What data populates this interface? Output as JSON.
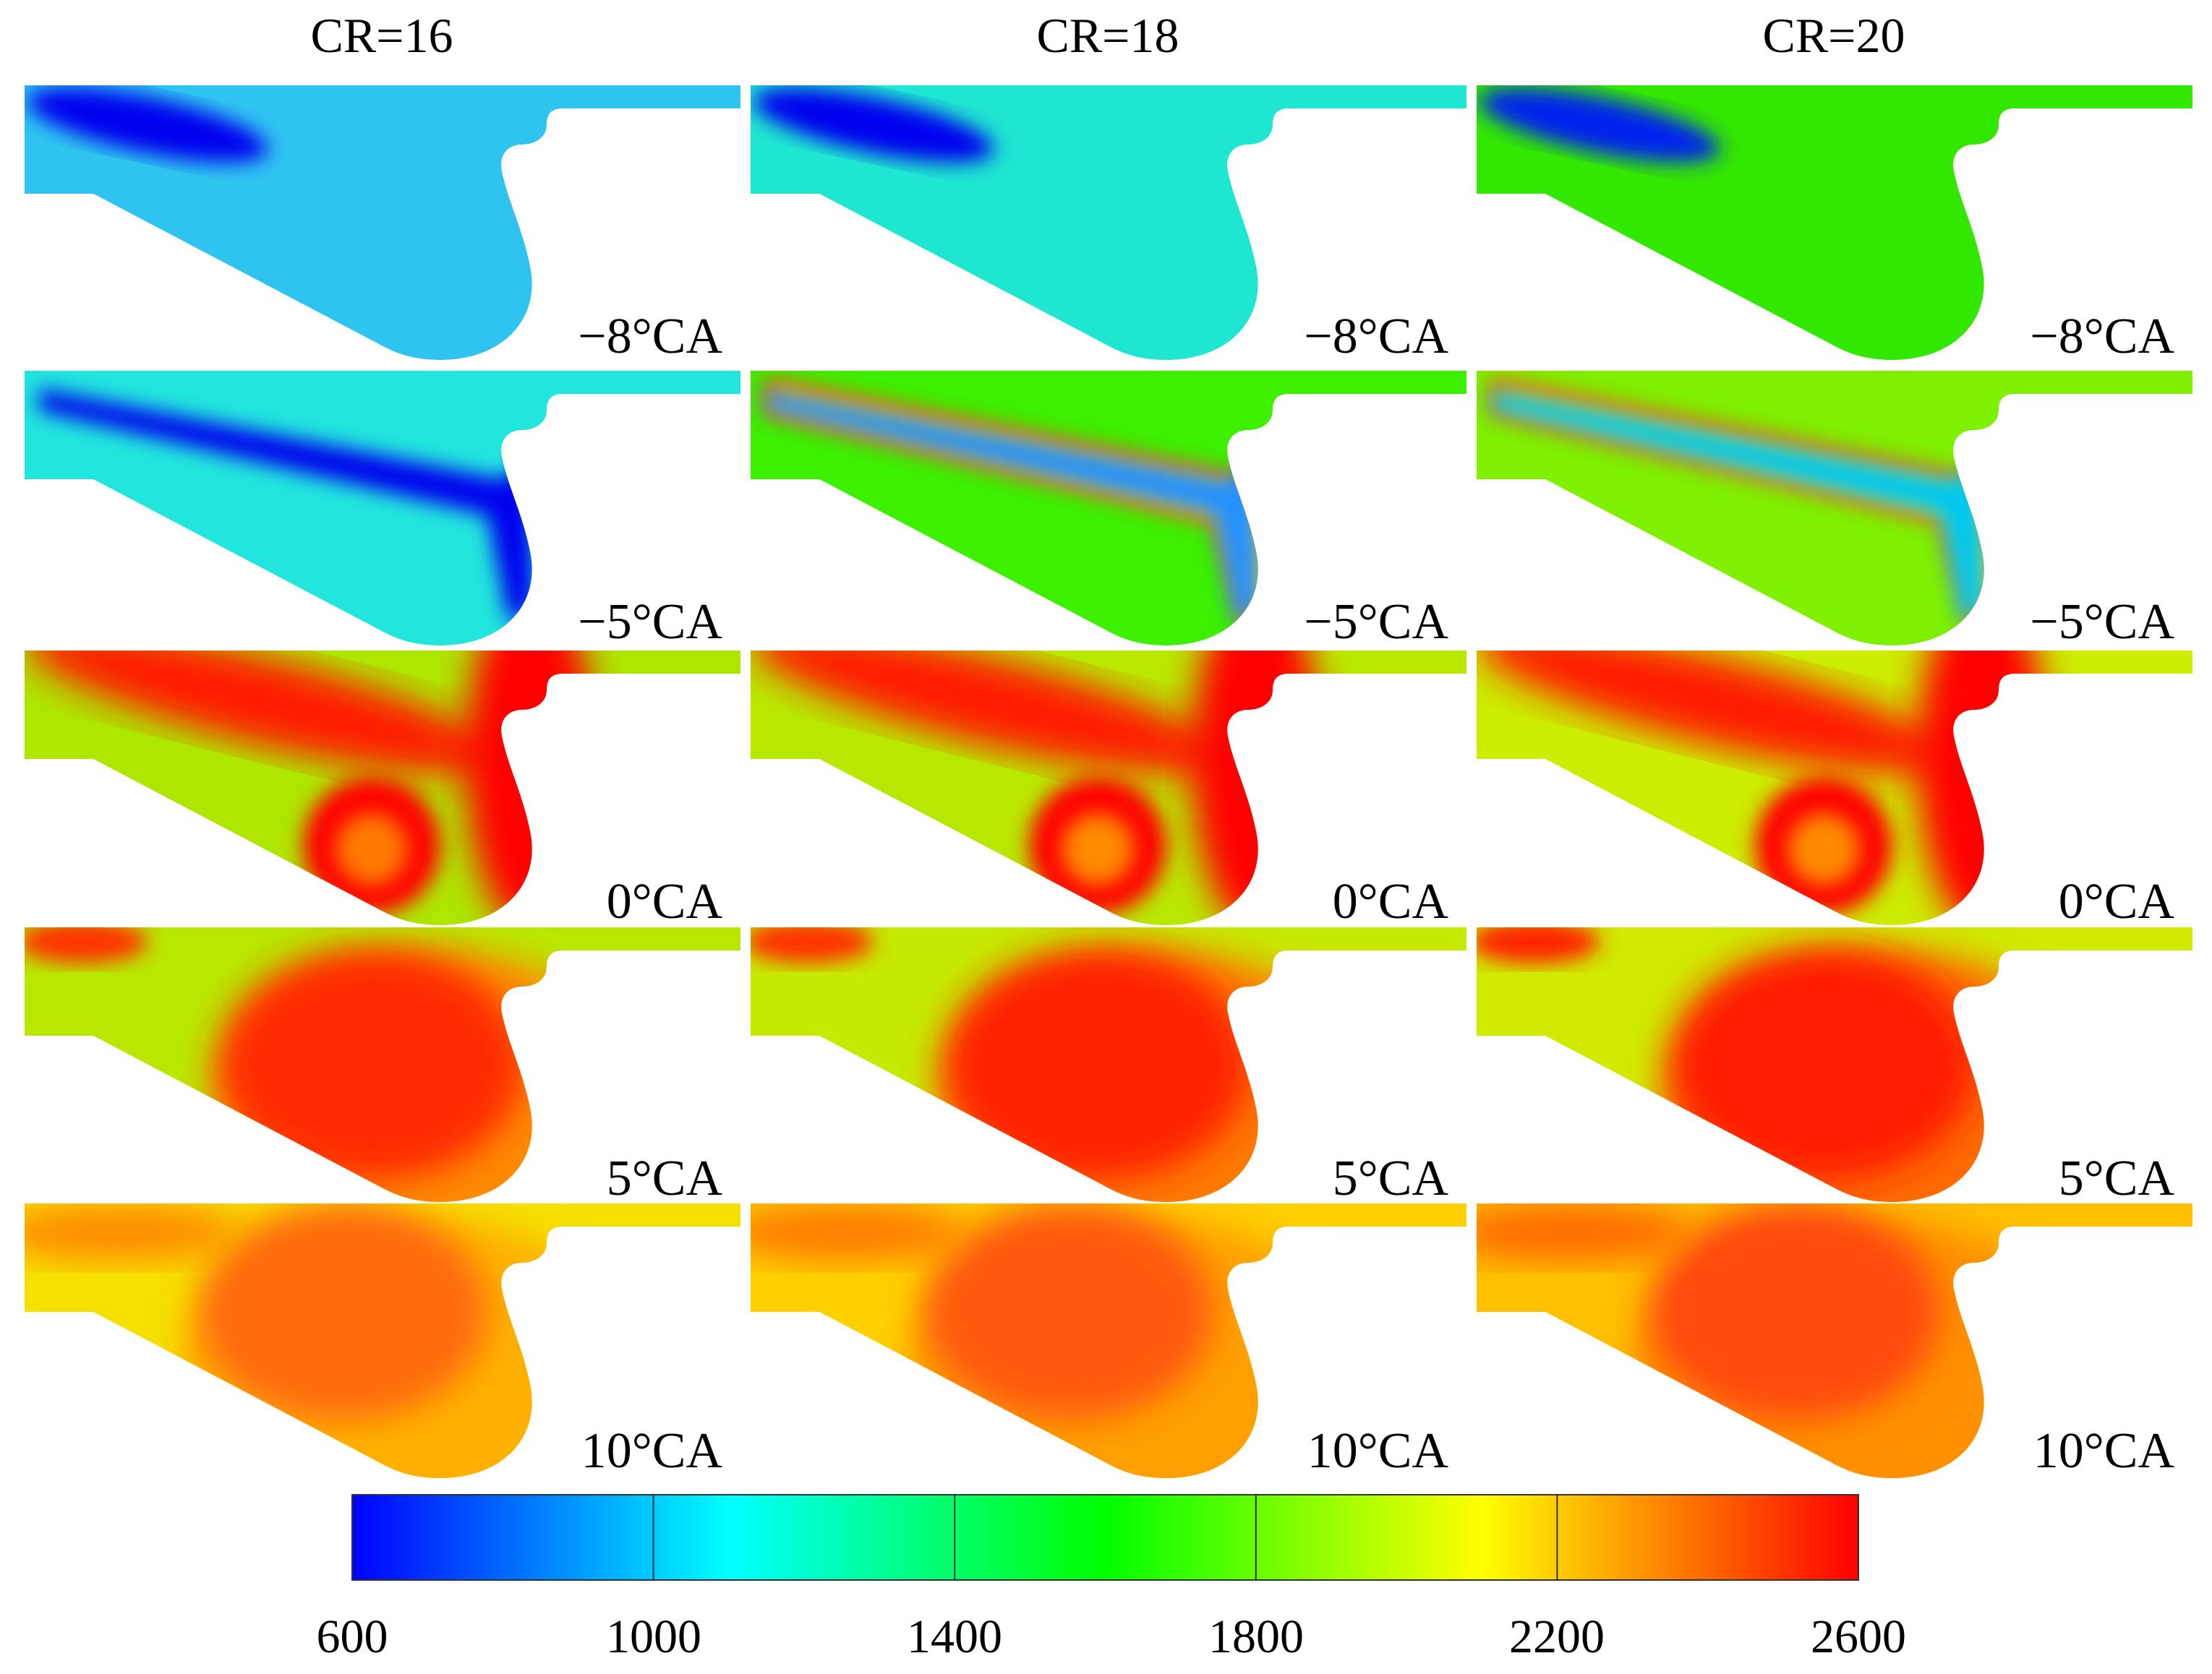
{
  "columns": [
    "CR=16",
    "CR=18",
    "CR=20"
  ],
  "rows": [
    "−8°CA",
    "−5°CA",
    "0°CA",
    "5°CA",
    "10°CA"
  ],
  "colorbar": {
    "min": 600,
    "max": 2600,
    "ticks": [
      "600",
      "1000",
      "1400",
      "1800",
      "2200",
      "2600"
    ],
    "colors": [
      "#0000ff",
      "#00ffff",
      "#00ff00",
      "#ffff00",
      "#ff0000"
    ]
  },
  "panels": [
    [
      {
        "bg": "#2fc4f0",
        "core": "#0000ee",
        "mid": null,
        "hot": null
      },
      {
        "bg": "#22e6de",
        "core": "#0000ee",
        "mid": null,
        "hot": null
      },
      {
        "bg": "#aee600",
        "core": "#ff1a00",
        "mid": "#ff7a00",
        "hot": "#ff0000"
      },
      {
        "bg": "#b9e800",
        "core": "#ff2a00",
        "mid": "#ff8a00",
        "hot": "#ff3300"
      },
      {
        "bg": "#f6e000",
        "core": "#ff6a10",
        "mid": "#ffb000",
        "hot": "#ff8a00"
      }
    ],
    [
      {
        "bg": "#1fe6d0",
        "core": "#0000ee",
        "mid": null,
        "hot": null
      },
      {
        "bg": "#3cf000",
        "core": "#2090ff",
        "mid": "#ffe000",
        "hot": "#ff3a00"
      },
      {
        "bg": "#b9e800",
        "core": "#ff1a00",
        "mid": "#ff8a00",
        "hot": "#ff0000"
      },
      {
        "bg": "#c6ea00",
        "core": "#ff2000",
        "mid": "#ff7a00",
        "hot": "#ff3300"
      },
      {
        "bg": "#ffd000",
        "core": "#ff5a10",
        "mid": "#ffa000",
        "hot": "#ff7a00"
      }
    ],
    [
      {
        "bg": "#33e800",
        "core": "#0022ee",
        "mid": null,
        "hot": null
      },
      {
        "bg": "#7ef000",
        "core": "#00c8f0",
        "mid": "#ffd800",
        "hot": "#ff3a00"
      },
      {
        "bg": "#ccec00",
        "core": "#ff1a00",
        "mid": "#ff8a00",
        "hot": "#ff0000"
      },
      {
        "bg": "#d0ea00",
        "core": "#ff1a00",
        "mid": "#ff6a00",
        "hot": "#ff2200"
      },
      {
        "bg": "#ffc000",
        "core": "#ff4a10",
        "mid": "#ff9000",
        "hot": "#ff6a00"
      }
    ]
  ]
}
